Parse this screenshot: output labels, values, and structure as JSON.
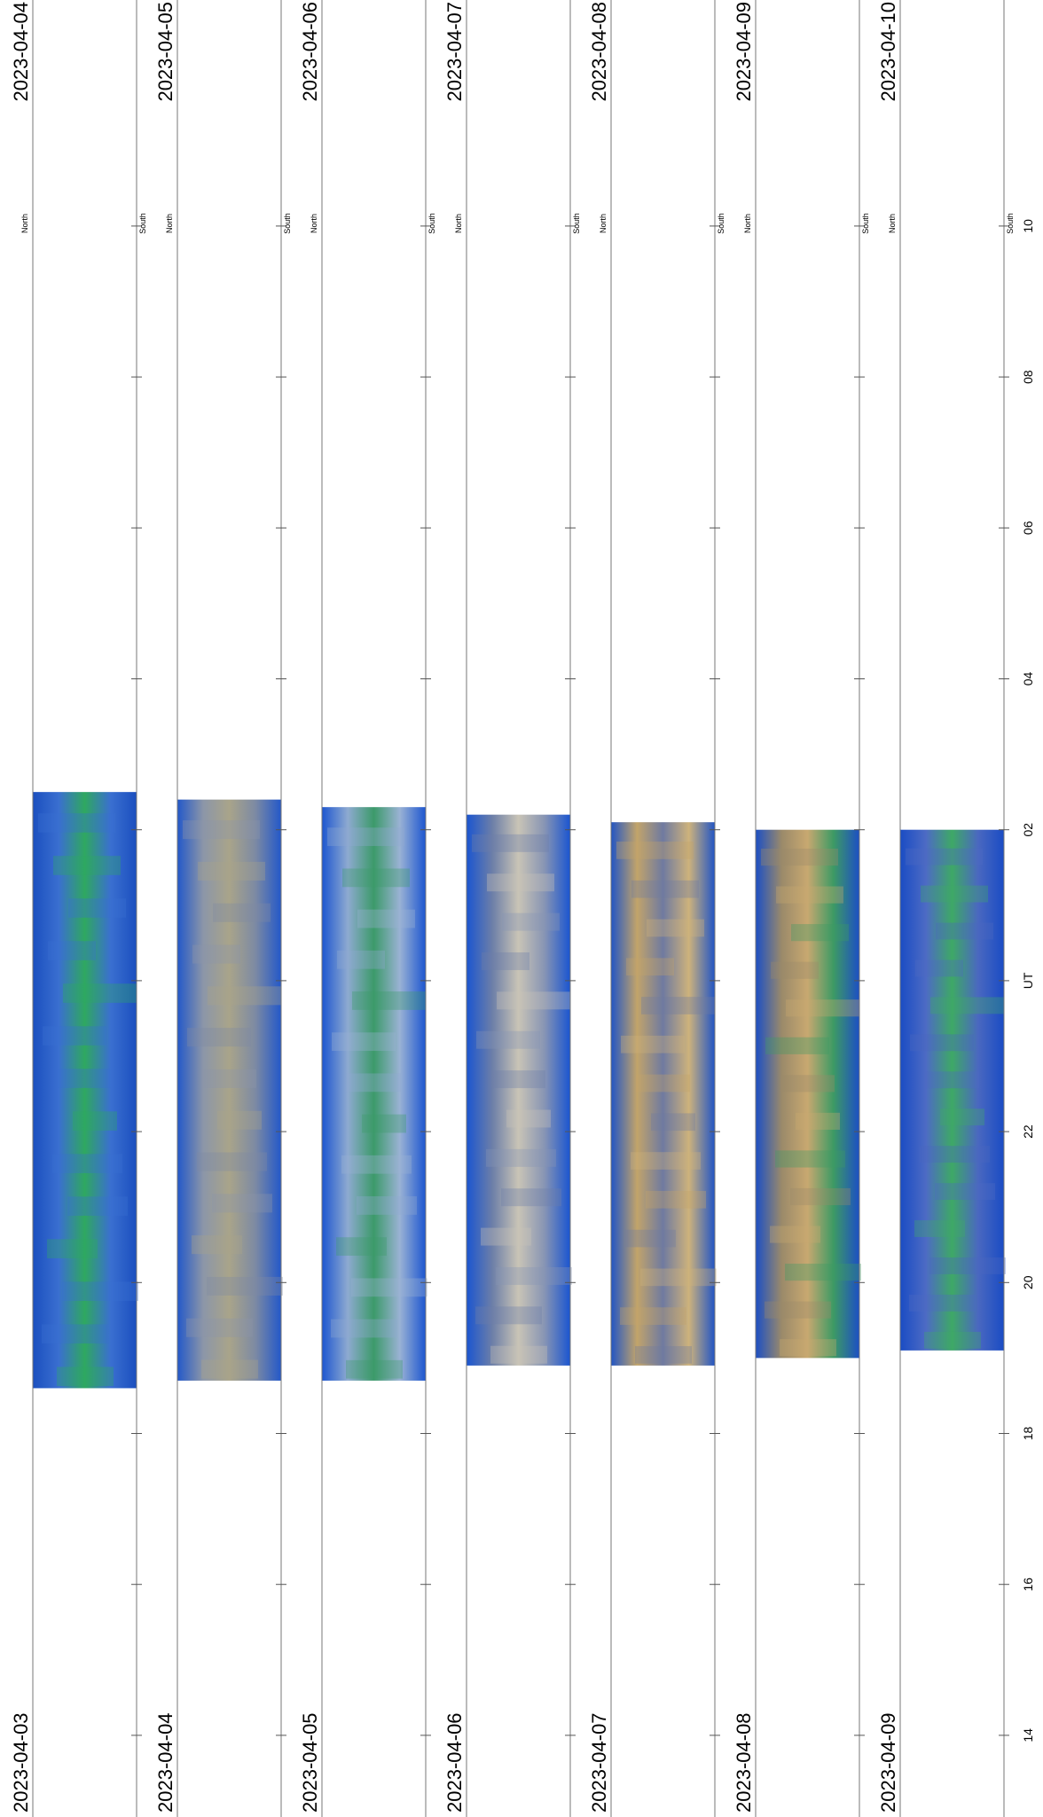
{
  "chart_data": {
    "type": "keogram",
    "orientation": "rotated 90 degrees; time axis runs bottom-to-top",
    "xlabel": "UT",
    "x_ticks": [
      "14",
      "16",
      "18",
      "20",
      "22",
      "UT",
      "02",
      "04",
      "06",
      "08",
      "10"
    ],
    "x_range_hours": [
      13,
      11
    ],
    "compass_labels": {
      "top": "North",
      "bottom": "South"
    },
    "panels": [
      {
        "start_date": "2023-04-03",
        "end_date": "2023-04-04",
        "data_start_ut": 18.6,
        "data_end_ut": 2.5,
        "palette": "aurora-green",
        "colors": [
          "#1b4fbf",
          "#3a6fd0",
          "#2fa860",
          "#3a6fd0",
          "#1b4fbf"
        ]
      },
      {
        "start_date": "2023-04-04",
        "end_date": "2023-04-05",
        "data_start_ut": 18.7,
        "data_end_ut": 2.4,
        "palette": "cloudy-grey",
        "colors": [
          "#2358c9",
          "#8c96a8",
          "#a9a48a",
          "#7d8aa3",
          "#2358c9"
        ]
      },
      {
        "start_date": "2023-04-05",
        "end_date": "2023-04-06",
        "data_start_ut": 18.7,
        "data_end_ut": 2.3,
        "palette": "aurora-cloudy",
        "colors": [
          "#1d56d0",
          "#8eaad0",
          "#3c9a6a",
          "#9ab2d4",
          "#1d56d0"
        ]
      },
      {
        "start_date": "2023-04-06",
        "end_date": "2023-04-07",
        "data_start_ut": 18.9,
        "data_end_ut": 2.2,
        "palette": "cloudy-blue",
        "colors": [
          "#1a55d0",
          "#6d7fa8",
          "#c9c4b6",
          "#8895b4",
          "#1a55d0"
        ]
      },
      {
        "start_date": "2023-04-07",
        "end_date": "2023-04-08",
        "data_start_ut": 18.9,
        "data_end_ut": 2.1,
        "palette": "moonlit-tan",
        "colors": [
          "#2255c4",
          "#c2a46a",
          "#6f7aa0",
          "#cdb27c",
          "#2255c4"
        ]
      },
      {
        "start_date": "2023-04-08",
        "end_date": "2023-04-09",
        "data_start_ut": 19.0,
        "data_end_ut": 2.0,
        "palette": "aurora-tan",
        "colors": [
          "#1c4fc4",
          "#9a8a6a",
          "#c8a870",
          "#3d9a64",
          "#1c4fc4"
        ]
      },
      {
        "start_date": "2023-04-09",
        "end_date": "2023-04-10",
        "data_start_ut": 19.1,
        "data_end_ut": 2.0,
        "palette": "aurora-green-bright",
        "colors": [
          "#1a4cc4",
          "#4d6bc4",
          "#3ea866",
          "#4a68c0",
          "#1a4cc4"
        ]
      }
    ]
  }
}
